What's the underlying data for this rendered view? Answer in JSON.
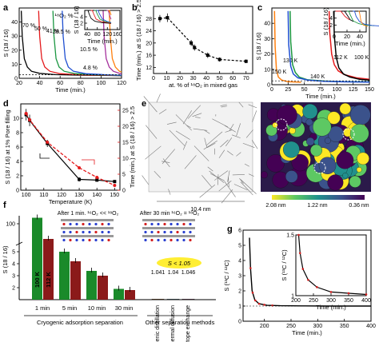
{
  "panels": {
    "a": "a",
    "b": "b",
    "c": "c",
    "d": "d",
    "e": "e",
    "f": "f",
    "g": "g"
  },
  "chart_data": [
    {
      "id": "a",
      "type": "line",
      "title": "¹⁸O₂ %",
      "xlabel": "Time (min.)",
      "ylabel": "S (18 / 16)",
      "xlim": [
        20,
        120
      ],
      "ylim": [
        0,
        50
      ],
      "xticks": [
        20,
        40,
        60,
        80,
        100,
        120
      ],
      "yticks": [
        0,
        10,
        20,
        30,
        40
      ],
      "series": [
        {
          "name": "70 %",
          "color": "#000000",
          "x": [
            22,
            23,
            25,
            28,
            32,
            40,
            55,
            80,
            110,
            120
          ],
          "y": [
            48,
            30,
            14,
            8,
            5,
            3.5,
            2.6,
            2.2,
            2.0,
            1.9
          ]
        },
        {
          "name": "50 %",
          "color": "#e41a1c",
          "x": [
            39,
            40,
            42,
            45,
            50,
            60,
            80,
            110,
            120
          ],
          "y": [
            48,
            30,
            14,
            8,
            5,
            3.3,
            2.5,
            2.1,
            2.0
          ]
        },
        {
          "name": "41 %",
          "color": "#1a9641",
          "x": [
            53,
            54,
            56,
            59,
            64,
            75,
            95,
            120
          ],
          "y": [
            48,
            30,
            14,
            8,
            5,
            3.3,
            2.5,
            2.1
          ]
        },
        {
          "name": "28.5 %",
          "color": "#1f4fd1",
          "x": [
            62,
            63,
            65,
            68,
            73,
            85,
            105,
            120
          ],
          "y": [
            48,
            30,
            14,
            8,
            5,
            3.3,
            2.5,
            2.2
          ]
        },
        {
          "name": "10.5 %",
          "color": "#a5309c",
          "x": [
            102,
            103,
            105,
            108,
            112,
            118,
            120
          ],
          "y": [
            48,
            30,
            14,
            8,
            5,
            3.5,
            3.2
          ]
        },
        {
          "name": "4.8 %",
          "color": "#ff7f0e",
          "x": [
            108,
            109,
            111,
            114,
            118,
            120
          ],
          "y": [
            48,
            30,
            14,
            8,
            5,
            4.5
          ]
        }
      ],
      "inset": {
        "xlabel": "Time (min.)",
        "ylabel": "S (18 / 16)",
        "xlim": [
          30,
          170
        ],
        "ylim": [
          0,
          6
        ],
        "xticks": [
          40,
          80,
          120,
          160
        ],
        "yticks": [
          2,
          4
        ]
      }
    },
    {
      "id": "b",
      "type": "line",
      "xlabel": "at. % of ¹⁸O₂ in mixed gas",
      "ylabel": "Time (min.) at S (18 / 16) > 2.5",
      "xlim": [
        0,
        75
      ],
      "ylim": [
        10,
        32
      ],
      "xticks": [
        0,
        10,
        20,
        30,
        40,
        50,
        60,
        70
      ],
      "yticks": [
        12,
        16,
        20,
        24,
        28
      ],
      "series": [
        {
          "name": "",
          "color": "#000000",
          "x": [
            4.8,
            10.5,
            28.5,
            31,
            41,
            50,
            70
          ],
          "y": [
            28,
            28.3,
            20,
            18.5,
            16,
            14.6,
            14
          ],
          "err": [
            1.2,
            1.4,
            1,
            1,
            0.9,
            0.7,
            0.6
          ]
        }
      ]
    },
    {
      "id": "c",
      "type": "line",
      "xlabel": "Time (min.)",
      "ylabel": "S (18 / 16)",
      "xlim": [
        0,
        150
      ],
      "ylim": [
        0,
        50
      ],
      "xticks": [
        0,
        25,
        50,
        75,
        100,
        125,
        150
      ],
      "yticks": [
        0,
        10,
        20,
        30,
        40
      ],
      "series": [
        {
          "name": "100 K",
          "color": "#e41a1c",
          "x": [
            88,
            89,
            92,
            96,
            102,
            112,
            130,
            150
          ],
          "y": [
            48,
            34,
            20,
            13,
            9,
            6.5,
            4.5,
            3.5
          ]
        },
        {
          "name": "112 K",
          "color": "#000000",
          "x": [
            95,
            96,
            99,
            103,
            110,
            120,
            135,
            150
          ],
          "y": [
            48,
            32,
            18,
            11,
            7,
            5,
            3.5,
            3
          ]
        },
        {
          "name": "130 K",
          "color": "#1a9641",
          "x": [
            28,
            29,
            32,
            36,
            42,
            55,
            80,
            110,
            150
          ],
          "y": [
            48,
            28,
            13,
            8,
            5,
            3.2,
            2.4,
            2.0,
            1.8
          ]
        },
        {
          "name": "140 K",
          "color": "#1f4fd1",
          "x": [
            25,
            26,
            29,
            33,
            40,
            55,
            80,
            110,
            150
          ],
          "y": [
            48,
            26,
            12,
            7,
            4.5,
            3,
            2.2,
            1.9,
            1.7
          ]
        },
        {
          "name": "150 K",
          "color": "#ff7f0e",
          "x": [
            4,
            5,
            7,
            10,
            15,
            25,
            45
          ],
          "y": [
            48,
            25,
            10,
            5,
            3,
            2,
            1.6
          ]
        }
      ],
      "inset": {
        "xlabel": "Time (min.)",
        "ylabel": "S (18 / 16)",
        "xlim": [
          0,
          50
        ],
        "ylim": [
          0,
          6
        ],
        "xticks": [
          0,
          20,
          40
        ],
        "yticks": [
          2,
          4
        ]
      }
    },
    {
      "id": "d",
      "type": "line",
      "xlabel": "Temperature (K)",
      "ylabel": "S (18 / 16) at 1% Pore filling",
      "y2label": "Time (min.) at S (18 / 16) > 2.5",
      "xlim": [
        97,
        153
      ],
      "ylim": [
        0,
        12
      ],
      "y2lim": [
        0,
        27
      ],
      "xticks": [
        100,
        110,
        120,
        130,
        140,
        150
      ],
      "yticks": [
        0,
        2,
        4,
        6,
        8,
        10
      ],
      "y2ticks": [
        0,
        5,
        10,
        15,
        20,
        25
      ],
      "series": [
        {
          "name": "",
          "color": "#000000",
          "x": [
            100,
            102,
            112,
            130,
            140,
            150
          ],
          "y": [
            10.5,
            9.7,
            6.5,
            1.5,
            1.4,
            1.2
          ],
          "err": [
            0.8,
            0.8,
            0.5,
            0.3,
            0.2,
            0.2
          ]
        },
        {
          "name": "",
          "color": "#e41a1c",
          "axis": "right",
          "x": [
            100,
            102,
            112,
            130,
            140,
            150
          ],
          "y": [
            24,
            22,
            15,
            7,
            4,
            1.5
          ]
        }
      ]
    },
    {
      "id": "e",
      "type": "heatmap",
      "scale_label": "10.4 nm",
      "colorbar_ticks": [
        "2.08 nm",
        "1.22 nm",
        "0.36 nm"
      ]
    },
    {
      "id": "f",
      "type": "bar",
      "ylabel": "S (18 / 16)",
      "ylim": [
        0,
        125
      ],
      "yticks": [
        1,
        2,
        3,
        4,
        5,
        6,
        100
      ],
      "group_labels": [
        "1 min",
        "5 min",
        "10 min",
        "30 min"
      ],
      "section_labels": [
        "Cryogenic adsorption separation",
        "Other separation methods"
      ],
      "annotation": "S < 1.05",
      "caption_left": "After 1 min. ¹⁶O₂ << ¹⁸O₂",
      "caption_right": "After 30 min ¹⁶O₂ = ¹⁸O₂",
      "series": [
        {
          "name": "100 K",
          "color": "#1a8a2a",
          "values": [
            115,
            5.0,
            3.4,
            1.9
          ]
        },
        {
          "name": "112 K",
          "color": "#8b1a1a",
          "values": [
            62,
            4.2,
            3.0,
            1.8
          ]
        }
      ],
      "other_methods": [
        {
          "label": "Cryogenic distillation",
          "value": 1.041,
          "color": "#ff8c1a"
        },
        {
          "label": "Thermal diffusion",
          "value": 1.04,
          "color": "#7fd3ee"
        },
        {
          "label": "Isotope exchange",
          "value": 1.046,
          "color": "#f3a7c9"
        }
      ]
    },
    {
      "id": "g",
      "type": "line",
      "xlabel": "Time (min.)",
      "ylabel": "S (¹³C / ¹²C)",
      "xlim": [
        160,
        400
      ],
      "ylim": [
        0,
        6
      ],
      "xticks": [
        200,
        250,
        300,
        350,
        400
      ],
      "yticks": [
        0,
        1,
        2,
        3,
        4,
        5,
        6
      ],
      "series": [
        {
          "name": "",
          "color": "#000000",
          "x": [
            172,
            174,
            177,
            182,
            190,
            205,
            230,
            270,
            320,
            400
          ],
          "y": [
            5.5,
            3.5,
            2.0,
            1.4,
            1.15,
            1.05,
            1.02,
            1.01,
            1.0,
            1.0
          ]
        }
      ],
      "inset": {
        "xlabel": "Time (min.)",
        "ylabel": "S (¹³C / ¹²C)",
        "xlim": [
          200,
          400
        ],
        "ylim": [
          1.0,
          1.5
        ],
        "xticks": [
          200,
          250,
          300,
          350,
          400
        ],
        "yticks": [
          1.0,
          1.5
        ]
      }
    }
  ]
}
